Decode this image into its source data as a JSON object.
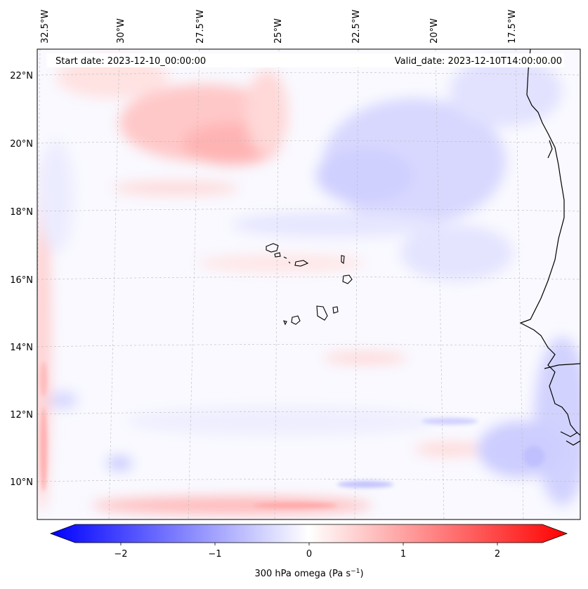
{
  "map": {
    "start_label": "Start date: 2023-12-10_00:00:00",
    "valid_label": "Valid_date: 2023-12-10T14:00:00.00",
    "lon_labels": [
      "32.5°W",
      "30°W",
      "27.5°W",
      "25°W",
      "22.5°W",
      "20°W",
      "17.5°W"
    ],
    "lat_labels": [
      "22°N",
      "20°N",
      "18°N",
      "16°N",
      "14°N",
      "12°N",
      "10°N"
    ],
    "variable": "300 hPa omega",
    "colors": {
      "negative": "#0000ff",
      "zero": "#ffffff",
      "positive": "#ff0000"
    }
  },
  "colorbar": {
    "label": "300 hPa omega (Pa s",
    "label_exponent": "−1",
    "label_close": ")",
    "ticks": [
      "−2",
      "−1",
      "0",
      "1",
      "2"
    ],
    "min": -2.75,
    "max": 2.75
  }
}
